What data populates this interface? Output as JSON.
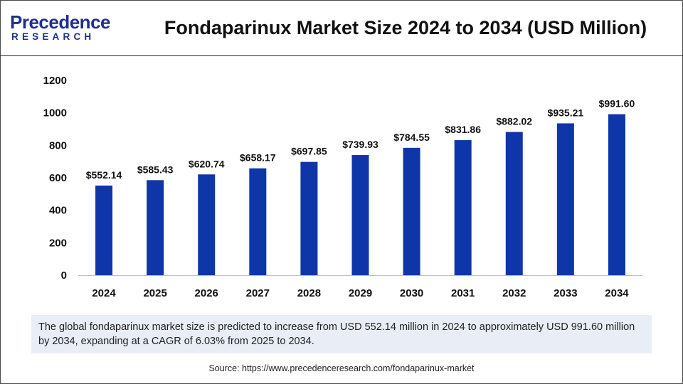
{
  "brand": {
    "logo_main": "Precedence",
    "logo_sub": "RESEARCH"
  },
  "colors": {
    "bar": "#0f36a8",
    "logo": "#1f2f8f",
    "summary_bg": "#e8edf6"
  },
  "summary": "The global fondaparinux market size is predicted to increase from USD 552.14 million in 2024 to approximately USD 991.60 million by 2034, expanding at a CAGR of 6.03% from 2025 to 2034.",
  "source": "Source: https://www.precedenceresearch.com/fondaparinux-market",
  "chart_data": {
    "type": "bar",
    "title": "Fondaparinux Market Size 2024 to 2034 (USD Million)",
    "xlabel": "",
    "ylabel": "",
    "categories": [
      "2024",
      "2025",
      "2026",
      "2027",
      "2028",
      "2029",
      "2030",
      "2031",
      "2032",
      "2033",
      "2034"
    ],
    "values": [
      552.14,
      585.43,
      620.74,
      658.17,
      697.85,
      739.93,
      784.55,
      831.86,
      882.02,
      935.21,
      991.6
    ],
    "value_labels": [
      "$552.14",
      "$585.43",
      "$620.74",
      "$658.17",
      "$697.85",
      "$739.93",
      "$784.55",
      "$831.86",
      "$882.02",
      "$935.21",
      "$991.60"
    ],
    "yticks": [
      0,
      200,
      400,
      600,
      800,
      1000,
      1200
    ],
    "ylim": [
      0,
      1200
    ],
    "grid": false,
    "legend": "none"
  }
}
